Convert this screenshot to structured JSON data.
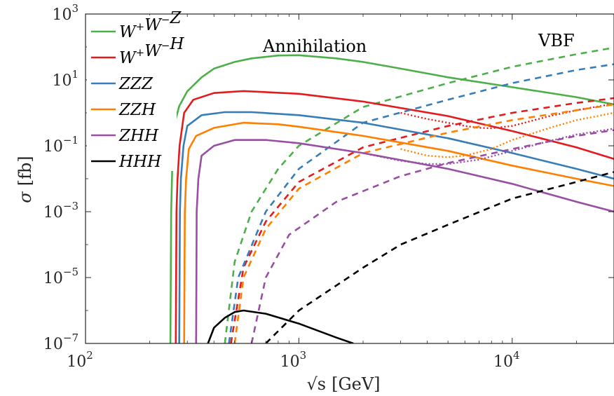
{
  "chart_data": {
    "type": "line",
    "xlabel_prefix": "√s",
    "xlabel_unit": "[GeV]",
    "ylabel_symbol": "σ",
    "ylabel_unit": "[fb]",
    "x_scale": "log",
    "y_scale": "log",
    "xlim": [
      100,
      30000
    ],
    "ylim": [
      1e-07,
      1000
    ],
    "x_ticks": [
      {
        "value": 100,
        "base": "10",
        "exp": "2"
      },
      {
        "value": 1000,
        "base": "10",
        "exp": "3"
      },
      {
        "value": 10000,
        "base": "10",
        "exp": "4"
      }
    ],
    "y_ticks": [
      {
        "value": 1e-07,
        "base": "10",
        "exp": "−7"
      },
      {
        "value": 1e-05,
        "base": "10",
        "exp": "−5"
      },
      {
        "value": 0.001,
        "base": "10",
        "exp": "−3"
      },
      {
        "value": 0.1,
        "base": "10",
        "exp": "−1"
      },
      {
        "value": 10,
        "base": "10",
        "exp": "1"
      },
      {
        "value": 1000,
        "base": "10",
        "exp": "3"
      }
    ],
    "annotations": {
      "annihilation": "Annihilation",
      "vbf": "VBF"
    },
    "legend_position": "top-left",
    "series": [
      {
        "name": "W+W−Z",
        "legend": [
          [
            "W",
            "+"
          ],
          [
            "W",
            "−"
          ],
          [
            "Z",
            ""
          ]
        ],
        "color": "#4daf4a",
        "annihilation": [
          [
            250,
            1e-07
          ],
          [
            252,
            0.001
          ],
          [
            255,
            0.02
          ],
          [
            262,
            0.5
          ],
          [
            275,
            1.6
          ],
          [
            300,
            4.5
          ],
          [
            350,
            12
          ],
          [
            400,
            22
          ],
          [
            500,
            35
          ],
          [
            600,
            45
          ],
          [
            800,
            55
          ],
          [
            1000,
            56
          ],
          [
            1500,
            45
          ],
          [
            2000,
            35
          ],
          [
            3000,
            22
          ],
          [
            5000,
            12
          ],
          [
            10000,
            6
          ],
          [
            20000,
            3
          ],
          [
            30000,
            1.8
          ]
        ],
        "vbf": [
          [
            450,
            1e-07
          ],
          [
            500,
            3e-05
          ],
          [
            600,
            0.001
          ],
          [
            800,
            0.02
          ],
          [
            1000,
            0.1
          ],
          [
            2000,
            1.5
          ],
          [
            5000,
            8
          ],
          [
            10000,
            25
          ],
          [
            20000,
            60
          ],
          [
            30000,
            95
          ]
        ]
      },
      {
        "name": "W+W−H",
        "legend": [
          [
            "W",
            "+"
          ],
          [
            "W",
            "−"
          ],
          [
            "H",
            ""
          ]
        ],
        "color": "#e41a1c",
        "annihilation": [
          [
            265,
            1e-07
          ],
          [
            267,
            0.001
          ],
          [
            270,
            0.01
          ],
          [
            276,
            0.1
          ],
          [
            290,
            1
          ],
          [
            320,
            2.5
          ],
          [
            400,
            4
          ],
          [
            550,
            4.6
          ],
          [
            1000,
            3.8
          ],
          [
            2000,
            2.2
          ],
          [
            5000,
            0.8
          ],
          [
            10000,
            0.28
          ],
          [
            20000,
            0.09
          ],
          [
            30000,
            0.04
          ]
        ],
        "vbf": [
          [
            480,
            1e-07
          ],
          [
            550,
            2e-05
          ],
          [
            700,
            0.0005
          ],
          [
            1000,
            0.008
          ],
          [
            2000,
            0.09
          ],
          [
            5000,
            0.4
          ],
          [
            10000,
            1
          ],
          [
            20000,
            2
          ],
          [
            30000,
            2.8
          ]
        ],
        "combined": [
          [
            3000,
            1.0
          ],
          [
            4000,
            0.65
          ],
          [
            5000,
            0.5
          ],
          [
            6000,
            0.4
          ],
          [
            7000,
            0.35
          ],
          [
            8000,
            0.34
          ],
          [
            10000,
            0.4
          ],
          [
            15000,
            0.8
          ],
          [
            20000,
            1.2
          ],
          [
            30000,
            1.9
          ]
        ]
      },
      {
        "name": "ZZZ",
        "legend": [
          [
            "Z",
            ""
          ],
          [
            "Z",
            ""
          ],
          [
            "Z",
            ""
          ]
        ],
        "color": "#377eb8",
        "annihilation": [
          [
            275,
            1e-07
          ],
          [
            277,
            0.001
          ],
          [
            280,
            0.01
          ],
          [
            288,
            0.1
          ],
          [
            300,
            0.4
          ],
          [
            350,
            0.85
          ],
          [
            450,
            1.05
          ],
          [
            600,
            1.05
          ],
          [
            1000,
            0.85
          ],
          [
            2000,
            0.5
          ],
          [
            5000,
            0.17
          ],
          [
            10000,
            0.06
          ],
          [
            20000,
            0.02
          ],
          [
            30000,
            0.01
          ]
        ],
        "vbf": [
          [
            470,
            1e-07
          ],
          [
            520,
            1e-05
          ],
          [
            700,
            0.001
          ],
          [
            1000,
            0.02
          ],
          [
            2000,
            0.5
          ],
          [
            5000,
            2.5
          ],
          [
            10000,
            8
          ],
          [
            20000,
            20
          ],
          [
            30000,
            30
          ]
        ]
      },
      {
        "name": "ZZH",
        "legend": [
          [
            "Z",
            ""
          ],
          [
            "Z",
            ""
          ],
          [
            "H",
            ""
          ]
        ],
        "color": "#ff7f00",
        "annihilation": [
          [
            290,
            1e-07
          ],
          [
            292,
            0.001
          ],
          [
            296,
            0.01
          ],
          [
            305,
            0.08
          ],
          [
            330,
            0.2
          ],
          [
            400,
            0.35
          ],
          [
            550,
            0.5
          ],
          [
            800,
            0.45
          ],
          [
            1000,
            0.38
          ],
          [
            2000,
            0.2
          ],
          [
            5000,
            0.07
          ],
          [
            10000,
            0.025
          ],
          [
            20000,
            0.01
          ],
          [
            30000,
            0.006
          ]
        ],
        "vbf": [
          [
            500,
            1e-07
          ],
          [
            550,
            1e-05
          ],
          [
            700,
            0.0003
          ],
          [
            1000,
            0.005
          ],
          [
            2000,
            0.06
          ],
          [
            5000,
            0.25
          ],
          [
            10000,
            0.6
          ],
          [
            20000,
            1.2
          ],
          [
            30000,
            1.8
          ]
        ],
        "combined": [
          [
            3000,
            0.08
          ],
          [
            4000,
            0.05
          ],
          [
            5000,
            0.045
          ],
          [
            6000,
            0.05
          ],
          [
            8000,
            0.08
          ],
          [
            10000,
            0.15
          ],
          [
            15000,
            0.35
          ],
          [
            20000,
            0.6
          ],
          [
            30000,
            1.0
          ]
        ]
      },
      {
        "name": "ZHH",
        "legend": [
          [
            "Z",
            ""
          ],
          [
            "H",
            ""
          ],
          [
            "H",
            ""
          ]
        ],
        "color": "#984ea3",
        "annihilation": [
          [
            330,
            1e-07
          ],
          [
            332,
            0.001
          ],
          [
            338,
            0.01
          ],
          [
            350,
            0.05
          ],
          [
            400,
            0.1
          ],
          [
            500,
            0.15
          ],
          [
            700,
            0.15
          ],
          [
            1000,
            0.12
          ],
          [
            2000,
            0.06
          ],
          [
            5000,
            0.02
          ],
          [
            10000,
            0.007
          ],
          [
            20000,
            0.002
          ],
          [
            30000,
            0.001
          ]
        ],
        "vbf": [
          [
            600,
            1e-07
          ],
          [
            700,
            1e-05
          ],
          [
            900,
            0.0002
          ],
          [
            1500,
            0.002
          ],
          [
            3000,
            0.012
          ],
          [
            5000,
            0.03
          ],
          [
            10000,
            0.08
          ],
          [
            20000,
            0.2
          ],
          [
            30000,
            0.3
          ]
        ],
        "combined": [
          [
            2000,
            0.06
          ],
          [
            3000,
            0.035
          ],
          [
            4000,
            0.028
          ],
          [
            5000,
            0.028
          ],
          [
            7000,
            0.038
          ],
          [
            10000,
            0.07
          ],
          [
            15000,
            0.14
          ],
          [
            20000,
            0.22
          ],
          [
            30000,
            0.33
          ]
        ]
      },
      {
        "name": "HHH",
        "legend": [
          [
            "H",
            ""
          ],
          [
            "H",
            ""
          ],
          [
            "H",
            ""
          ]
        ],
        "color": "#000000",
        "annihilation": [
          [
            375,
            1e-07
          ],
          [
            400,
            3e-07
          ],
          [
            450,
            6e-07
          ],
          [
            500,
            9e-07
          ],
          [
            550,
            1e-06
          ],
          [
            700,
            8e-07
          ],
          [
            1000,
            4e-07
          ],
          [
            1500,
            1.5e-07
          ],
          [
            1800,
            1e-07
          ]
        ],
        "vbf": [
          [
            700,
            1e-07
          ],
          [
            1000,
            1e-06
          ],
          [
            2000,
            2e-05
          ],
          [
            3000,
            0.0001
          ],
          [
            5000,
            0.0004
          ],
          [
            10000,
            0.0025
          ],
          [
            20000,
            0.008
          ],
          [
            30000,
            0.016
          ]
        ]
      }
    ]
  }
}
